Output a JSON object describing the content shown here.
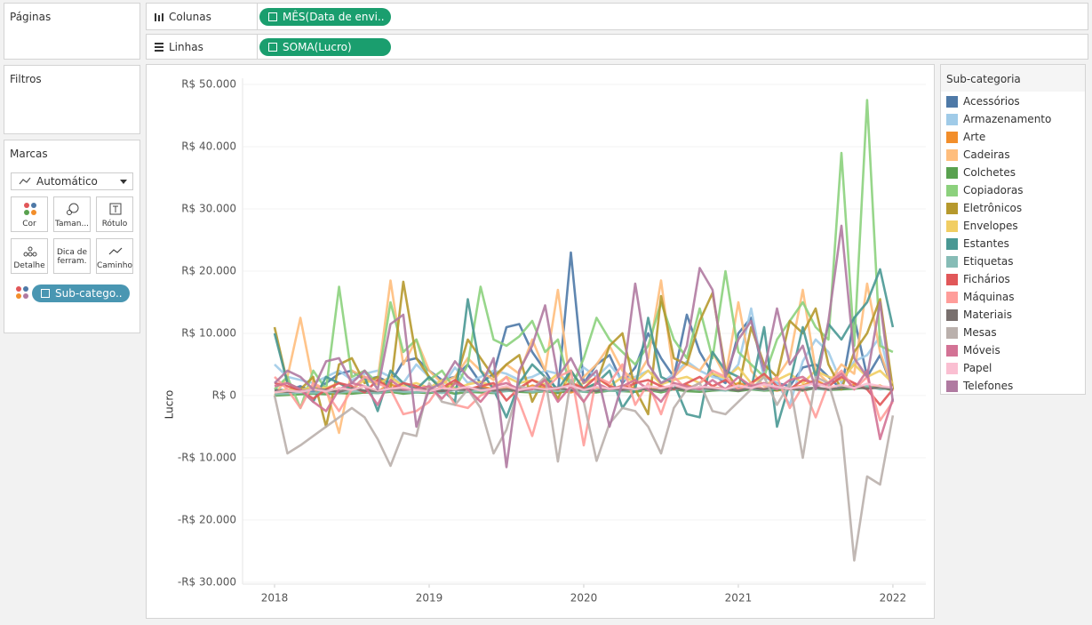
{
  "ui": {
    "pages": "Páginas",
    "filters": "Filtros",
    "marks": "Marcas",
    "mark_type": "Automático",
    "buttons": [
      "Cor",
      "Taman...",
      "Rótulo",
      "Detalhe",
      "Dica de ferram.",
      "Caminho"
    ],
    "marks_pill": "Sub-catego..",
    "columns_label": "Colunas",
    "columns_pill": "MÊS(Data de envi..",
    "rows_label": "Linhas",
    "rows_pill": "SOMA(Lucro)"
  },
  "chart_data": {
    "type": "line",
    "y_label": "Lucro",
    "legend_title": "Sub-categoria",
    "grid": true,
    "x": [
      2018,
      2018.083,
      2018.167,
      2018.25,
      2018.333,
      2018.417,
      2018.5,
      2018.583,
      2018.667,
      2018.75,
      2018.833,
      2018.917,
      2019,
      2019.083,
      2019.167,
      2019.25,
      2019.333,
      2019.417,
      2019.5,
      2019.583,
      2019.667,
      2019.75,
      2019.833,
      2019.917,
      2020,
      2020.083,
      2020.167,
      2020.25,
      2020.333,
      2020.417,
      2020.5,
      2020.583,
      2020.667,
      2020.75,
      2020.833,
      2020.917,
      2021,
      2021.083,
      2021.167,
      2021.25,
      2021.333,
      2021.417,
      2021.5,
      2021.583,
      2021.667,
      2021.75,
      2021.833,
      2021.917,
      2022
    ],
    "xlim": [
      2017.793,
      2022.213
    ],
    "xticks": [
      2018,
      2019,
      2020,
      2021,
      2022
    ],
    "ylim": [
      -30300,
      51000
    ],
    "yticks": [
      {
        "value": -30000,
        "label": "-R$ 30.000"
      },
      {
        "value": -20000,
        "label": "-R$ 20.000"
      },
      {
        "value": -10000,
        "label": "-R$ 10.000"
      },
      {
        "value": 0,
        "label": "R$ 0"
      },
      {
        "value": 10000,
        "label": "R$ 10.000"
      },
      {
        "value": 20000,
        "label": "R$ 20.000"
      },
      {
        "value": 30000,
        "label": "R$ 30.000"
      },
      {
        "value": 40000,
        "label": "R$ 40.000"
      },
      {
        "value": 50000,
        "label": "R$ 50.000"
      }
    ],
    "series": [
      {
        "name": "Acessórios",
        "color": "#4e79a7",
        "values": [
          1000,
          800,
          1500,
          600,
          2000,
          3500,
          4000,
          2500,
          3000,
          2000,
          5500,
          6000,
          4000,
          2500,
          3000,
          5000,
          2000,
          3500,
          11000,
          11500,
          7000,
          4000,
          500,
          23000,
          2000,
          5000,
          6500,
          2000,
          4500,
          10000,
          6000,
          3000,
          13000,
          7000,
          3500,
          2000,
          10000,
          12500,
          3000,
          2000,
          1500,
          4500,
          5000,
          3000,
          1000,
          12500,
          3000,
          6500,
          1000
        ]
      },
      {
        "name": "Armazenamento",
        "color": "#a0cbe8",
        "values": [
          5000,
          3000,
          2500,
          2000,
          3000,
          4000,
          2500,
          3500,
          4000,
          3000,
          2000,
          5000,
          3000,
          1500,
          4500,
          2000,
          3000,
          4000,
          3500,
          2500,
          3000,
          4000,
          3500,
          2000,
          4500,
          3000,
          5000,
          2500,
          3000,
          4000,
          2000,
          3500,
          5500,
          4000,
          3000,
          2500,
          5000,
          14000,
          3000,
          2000,
          -1500,
          5500,
          9000,
          7000,
          2000,
          5500,
          6500,
          9500,
          1000
        ]
      },
      {
        "name": "Arte",
        "color": "#f28e2b",
        "values": [
          300,
          600,
          800,
          1000,
          500,
          1200,
          900,
          1500,
          700,
          1800,
          1000,
          1300,
          600,
          900,
          1200,
          800,
          1500,
          1000,
          1400,
          700,
          1600,
          1200,
          800,
          500,
          1100,
          1300,
          900,
          1600,
          1200,
          800,
          1400,
          1000,
          1700,
          900,
          1300,
          1100,
          2000,
          1500,
          1000,
          800,
          1200,
          1600,
          2500,
          1400,
          1000,
          1800,
          1200,
          1600,
          800
        ]
      },
      {
        "name": "Cadeiras",
        "color": "#ffbe7d",
        "values": [
          0,
          3000,
          12500,
          2000,
          1000,
          -6000,
          4000,
          3000,
          2500,
          18500,
          5000,
          9000,
          4000,
          2000,
          3000,
          6000,
          4000,
          2500,
          5000,
          3500,
          9000,
          4000,
          17000,
          1000,
          3000,
          5000,
          8000,
          4000,
          2500,
          6000,
          18500,
          3000,
          5000,
          4000,
          7000,
          3000,
          15000,
          4000,
          1500,
          3000,
          6000,
          17000,
          4000,
          2000,
          5000,
          3500,
          18000,
          7000,
          1000
        ]
      },
      {
        "name": "Colchetes",
        "color": "#59a14f",
        "values": [
          0,
          100,
          200,
          300,
          200,
          400,
          300,
          500,
          400,
          600,
          300,
          500,
          400,
          700,
          300,
          600,
          500,
          400,
          800,
          600,
          500,
          700,
          400,
          900,
          600,
          500,
          800,
          700,
          600,
          900,
          500,
          1000,
          700,
          600,
          800,
          900,
          700,
          1000,
          800,
          900,
          1100,
          800,
          1200,
          900,
          1000,
          1100,
          1300,
          1200,
          900
        ]
      },
      {
        "name": "Copiadoras",
        "color": "#8cd17d",
        "values": [
          1000,
          3000,
          -2000,
          4000,
          1000,
          17500,
          3000,
          4000,
          2000,
          15000,
          7000,
          9000,
          2500,
          4000,
          1000,
          5000,
          17500,
          9000,
          8000,
          9500,
          12000,
          7000,
          9000,
          1000,
          6000,
          12500,
          9000,
          7000,
          5000,
          8000,
          15000,
          9000,
          6000,
          14000,
          6000,
          20000,
          7000,
          5000,
          3000,
          9000,
          12000,
          15000,
          11000,
          9000,
          39000,
          8000,
          47500,
          8000,
          7000
        ]
      },
      {
        "name": "Eletrônicos",
        "color": "#b6992d",
        "values": [
          11000,
          2000,
          1000,
          3000,
          -5000,
          5000,
          6000,
          2000,
          3000,
          1000,
          18300,
          6000,
          3000,
          1000,
          2000,
          9000,
          6000,
          3000,
          5000,
          6500,
          -1000,
          3000,
          -500,
          4000,
          1000,
          2000,
          8000,
          10000,
          1000,
          -3000,
          16000,
          6000,
          5000,
          12000,
          16500,
          4000,
          1000,
          11000,
          5000,
          3000,
          12000,
          10000,
          14000,
          5000,
          1000,
          7000,
          10000,
          15500,
          1000
        ]
      },
      {
        "name": "Envelopes",
        "color": "#f1ce63",
        "values": [
          500,
          1000,
          800,
          1500,
          1200,
          2000,
          1000,
          2500,
          1800,
          3000,
          1500,
          2000,
          1200,
          2500,
          1000,
          1800,
          2200,
          1500,
          3000,
          2000,
          2500,
          1800,
          3500,
          1200,
          2000,
          2800,
          1500,
          3000,
          2200,
          4000,
          1800,
          2500,
          3000,
          2000,
          3500,
          2800,
          4500,
          2000,
          3000,
          2500,
          3500,
          2000,
          4000,
          3000,
          2500,
          5000,
          3000,
          4000,
          2000
        ]
      },
      {
        "name": "Estantes",
        "color": "#499894",
        "values": [
          10000,
          2000,
          1000,
          -1000,
          3000,
          2000,
          1000,
          3000,
          -2500,
          4000,
          2000,
          1000,
          3000,
          1000,
          -1000,
          15500,
          4000,
          1000,
          -3500,
          2000,
          5000,
          3000,
          1000,
          4000,
          1000,
          2000,
          4000,
          -2000,
          1000,
          12500,
          3000,
          2000,
          -3000,
          -3500,
          7000,
          4000,
          3000,
          1000,
          11000,
          -5000,
          2000,
          11000,
          3000,
          11500,
          9000,
          12500,
          15000,
          20300,
          11000
        ]
      },
      {
        "name": "Etiquetas",
        "color": "#86bcb6",
        "values": [
          200,
          300,
          500,
          400,
          600,
          500,
          700,
          600,
          400,
          800,
          600,
          500,
          700,
          400,
          900,
          600,
          800,
          500,
          700,
          900,
          600,
          800,
          700,
          1000,
          600,
          900,
          800,
          700,
          1100,
          900,
          800,
          1000,
          1200,
          900,
          1000,
          800,
          1300,
          1100,
          900,
          1200,
          1000,
          1400,
          1100,
          900,
          1300,
          1200,
          1500,
          1000,
          1200
        ]
      },
      {
        "name": "Fichários",
        "color": "#e15759",
        "values": [
          2000,
          1500,
          800,
          -500,
          1000,
          2000,
          1500,
          500,
          2500,
          1000,
          2000,
          1500,
          800,
          1200,
          2500,
          1000,
          1500,
          2000,
          -800,
          1200,
          2500,
          1500,
          1000,
          2000,
          1200,
          3000,
          1500,
          1000,
          2000,
          2500,
          1500,
          1000,
          2000,
          3000,
          1500,
          2500,
          1000,
          2000,
          3500,
          1500,
          1000,
          2500,
          2000,
          1500,
          3000,
          2000,
          1000,
          -1500,
          1000
        ]
      },
      {
        "name": "Máquinas",
        "color": "#ff9d9a",
        "values": [
          3000,
          1000,
          -2000,
          2000,
          500,
          -2500,
          1000,
          3000,
          2000,
          1000,
          -3000,
          -2500,
          -1000,
          2000,
          -1500,
          -2000,
          0,
          1000,
          3000,
          -1000,
          -6500,
          1000,
          3000,
          4000,
          -8000,
          3000,
          2000,
          5000,
          -1500,
          2000,
          -3000,
          3000,
          1000,
          2000,
          4000,
          3000,
          1000,
          2000,
          1000,
          3000,
          -2000,
          1500,
          -3500,
          2000,
          4000,
          1000,
          3000,
          -4000,
          -1000
        ]
      },
      {
        "name": "Materiais",
        "color": "#79706e",
        "values": [
          800,
          600,
          700,
          1000,
          900,
          600,
          1200,
          800,
          700,
          1000,
          900,
          1100,
          800,
          700,
          1000,
          900,
          1200,
          800,
          1000,
          700,
          1100,
          900,
          1300,
          800,
          1000,
          700,
          1200,
          900,
          1100,
          1000,
          800,
          1200,
          900,
          1300,
          1000,
          1100,
          800,
          1200,
          1000,
          1400,
          1100,
          900,
          1300,
          1000,
          1200,
          1400,
          1100,
          1300,
          1000
        ]
      },
      {
        "name": "Mesas",
        "color": "#bab0ac",
        "values": [
          0,
          -9300,
          -8000,
          -6500,
          -5000,
          -3500,
          -2000,
          -3500,
          -7000,
          -11300,
          -6000,
          -6500,
          2000,
          -1000,
          -1500,
          1000,
          -2000,
          -9300,
          -5500,
          1500,
          1000,
          3000,
          -10600,
          2500,
          -1000,
          -10500,
          -4500,
          -2000,
          -2500,
          -5000,
          -9300,
          -2000,
          1000,
          2000,
          -2500,
          -3000,
          -1000,
          1000,
          3000,
          -1500,
          2000,
          -10000,
          3000,
          2000,
          -5000,
          -26500,
          -13000,
          -14300,
          -3200
        ]
      },
      {
        "name": "Móveis",
        "color": "#d37295",
        "values": [
          1500,
          2000,
          1000,
          -1000,
          -2500,
          1000,
          2000,
          1500,
          -1500,
          2500,
          1000,
          1000,
          1500,
          -500,
          2000,
          1000,
          -1000,
          1500,
          2000,
          1000,
          1000,
          2500,
          -1000,
          1500,
          -1000,
          2000,
          1000,
          1500,
          2500,
          1000,
          -1000,
          2000,
          1500,
          1000,
          2500,
          1000,
          3000,
          1500,
          2000,
          1000,
          2500,
          3000,
          1500,
          2000,
          3500,
          1000,
          4000,
          -7000,
          -500
        ]
      },
      {
        "name": "Papel",
        "color": "#fabfd2",
        "values": [
          500,
          800,
          600,
          1000,
          700,
          1200,
          900,
          1500,
          800,
          1100,
          1300,
          900,
          700,
          1200,
          1000,
          1400,
          800,
          1100,
          1500,
          900,
          1300,
          1000,
          1200,
          1600,
          900,
          1400,
          1100,
          1300,
          1000,
          1500,
          1200,
          1700,
          1100,
          1400,
          1300,
          1000,
          1600,
          1200,
          1800,
          1400,
          1100,
          1500,
          2000,
          1300,
          1700,
          1200,
          1900,
          1500,
          1300
        ]
      },
      {
        "name": "Telefones",
        "color": "#b07aa1",
        "values": [
          2000,
          4000,
          3000,
          1000,
          5500,
          6000,
          2000,
          4000,
          1000,
          11500,
          13000,
          -5000,
          1000,
          2000,
          5500,
          3000,
          1500,
          6000,
          -11500,
          4000,
          8000,
          14500,
          3000,
          6000,
          2000,
          4000,
          -5000,
          2000,
          18000,
          5000,
          2000,
          3000,
          8000,
          20500,
          17000,
          3000,
          9000,
          12000,
          4000,
          14000,
          5000,
          8000,
          1000,
          12000,
          27300,
          6000,
          3000,
          15000,
          -1000
        ]
      }
    ]
  }
}
